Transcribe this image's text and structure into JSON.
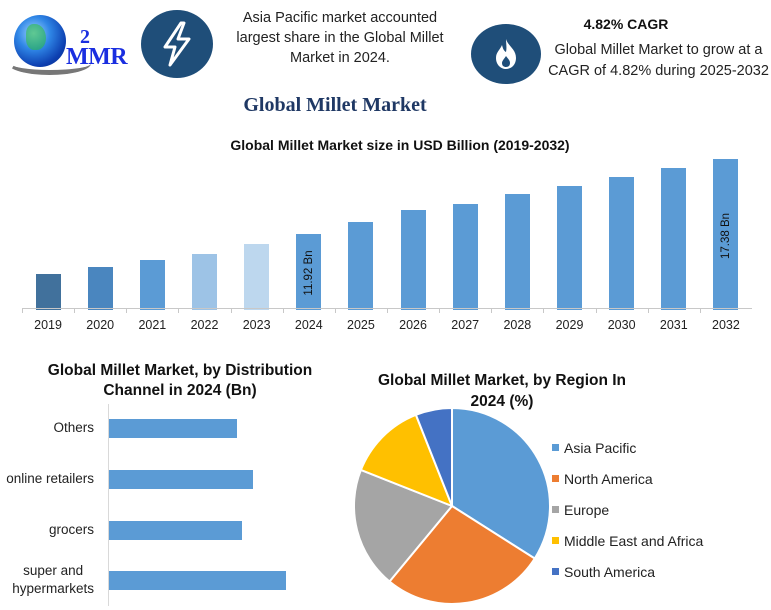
{
  "header": {
    "logo_text": "MMR",
    "logo_mark": "2",
    "icon_left": "lightning-icon",
    "icon_right": "flame-icon",
    "highlight_text": "Asia Pacific market accounted largest share in the Global Millet Market in 2024.",
    "cagr_title": "4.82% CAGR",
    "cagr_text": "Global Millet Market to grow at a CAGR of 4.82% during 2025-2032",
    "main_title": "Global Millet Market",
    "accent_color": "#1f4e79",
    "title_color": "#1f3864"
  },
  "chart_data": [
    {
      "type": "bar",
      "title": "Global Millet Market size in USD Billion (2019-2032)",
      "xlabel": "",
      "ylabel": "",
      "grid": false,
      "categories": [
        "2019",
        "2020",
        "2021",
        "2022",
        "2023",
        "2024",
        "2025",
        "2026",
        "2027",
        "2028",
        "2029",
        "2030",
        "2031",
        "2032"
      ],
      "values": [
        9.0,
        9.5,
        10.0,
        10.5,
        11.2,
        11.92,
        12.8,
        13.7,
        14.1,
        14.8,
        15.4,
        16.1,
        16.7,
        17.38
      ],
      "colors": [
        "#41719c",
        "#4a86bf",
        "#5b9bd5",
        "#9dc3e6",
        "#bdd7ee",
        "#5b9bd5",
        "#5b9bd5",
        "#5b9bd5",
        "#5b9bd5",
        "#5b9bd5",
        "#5b9bd5",
        "#5b9bd5",
        "#5b9bd5",
        "#5b9bd5"
      ],
      "data_labels": [
        {
          "category": "2024",
          "text": "11.92 Bn"
        },
        {
          "category": "2032",
          "text": "17.38 Bn"
        }
      ]
    },
    {
      "type": "bar",
      "orientation": "horizontal",
      "title": "Global Millet Market, by Distribution Channel in 2024 (Bn)",
      "categories": [
        "Others",
        "online retailers",
        "grocers",
        "super and hypermarkets"
      ],
      "values": [
        2.9,
        3.25,
        3.0,
        4.0
      ],
      "color": "#5b9bd5",
      "grid": false
    },
    {
      "type": "pie",
      "title": "Global Millet Market, by Region In 2024 (%)",
      "legend_position": "right",
      "labels": [
        "Asia Pacific",
        "North America",
        "Europe",
        "Middle East and Africa",
        "South America"
      ],
      "values": [
        34,
        27,
        20,
        13,
        6
      ],
      "colors": [
        "#5b9bd5",
        "#ed7d31",
        "#a5a5a5",
        "#ffc000",
        "#4472c4"
      ]
    }
  ]
}
